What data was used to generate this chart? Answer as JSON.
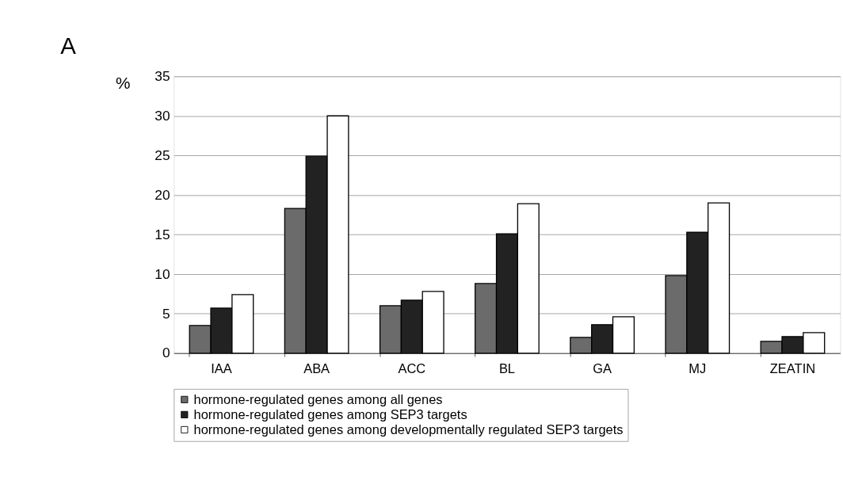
{
  "chart_data": {
    "type": "bar",
    "title": "A",
    "ylabel": "%",
    "categories": [
      "IAA",
      "ABA",
      "ACC",
      "BL",
      "GA",
      "MJ",
      "ZEATIN"
    ],
    "series": [
      {
        "name": "hormone-regulated genes among all genes",
        "color": "#6b6b6b",
        "values": [
          3.5,
          18.3,
          6.0,
          8.8,
          2.0,
          9.8,
          1.5
        ]
      },
      {
        "name": "hormone-regulated genes among SEP3 targets",
        "color": "#222222",
        "values": [
          5.7,
          24.9,
          6.7,
          15.1,
          3.6,
          15.3,
          2.1
        ]
      },
      {
        "name": "hormone-regulated genes among developmentally regulated SEP3 targets",
        "color": "#ffffff",
        "values": [
          7.4,
          30.0,
          7.8,
          18.9,
          4.6,
          19.0,
          2.6
        ]
      }
    ],
    "ylim": [
      0,
      35
    ],
    "yticks": [
      0,
      5,
      10,
      15,
      20,
      25,
      30,
      35
    ],
    "grid": "y",
    "legend": "bottom left"
  }
}
